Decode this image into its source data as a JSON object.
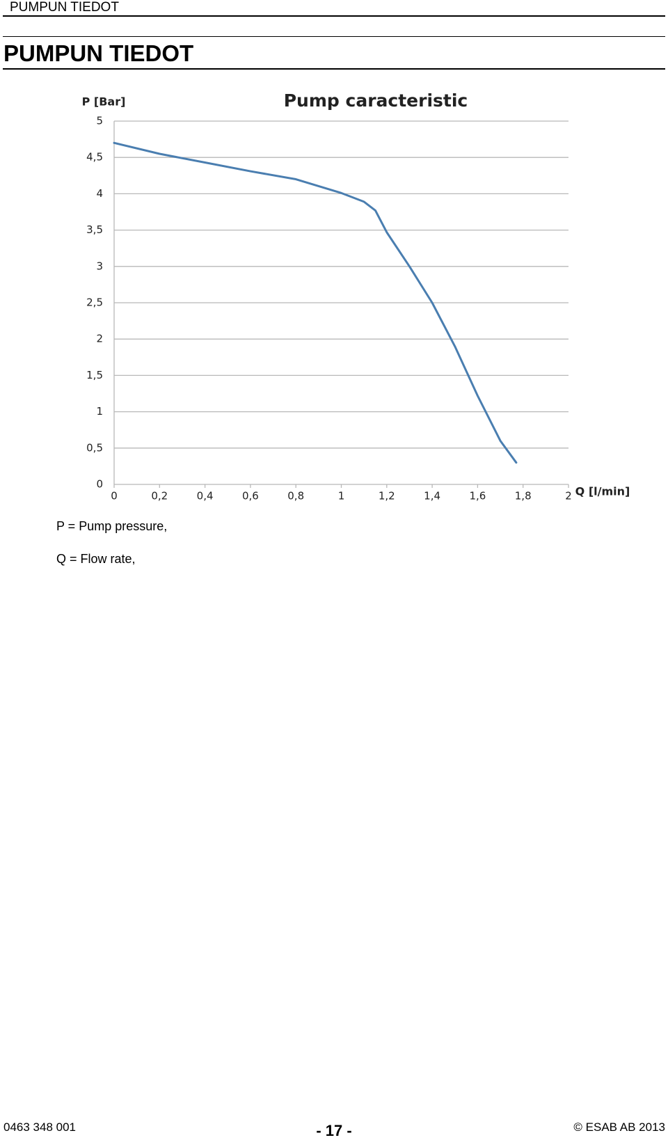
{
  "header": {
    "running_title": "PUMPUN TIEDOT",
    "title": "PUMPUN TIEDOT"
  },
  "chart_data": {
    "type": "line",
    "title": "Pump caracteristic",
    "y_label": "P [Bar]",
    "x_label": "Q [l/min]",
    "x": [
      0,
      0.2,
      0.4,
      0.6,
      0.8,
      1,
      1.1,
      1.15,
      1.2,
      1.3,
      1.4,
      1.5,
      1.6,
      1.7,
      1.77
    ],
    "values": [
      4.7,
      4.55,
      4.43,
      4.31,
      4.2,
      4.01,
      3.89,
      3.77,
      3.47,
      3.0,
      2.5,
      1.9,
      1.22,
      0.6,
      0.3
    ],
    "color": "#4a7eb0",
    "xlim": [
      0,
      2
    ],
    "ylim": [
      0,
      5
    ],
    "xticks": [
      0,
      {
        "value": 0.2,
        "label": "0,2"
      },
      {
        "value": 0.4,
        "label": "0,4"
      },
      {
        "value": 0.6,
        "label": "0,6"
      },
      {
        "value": 0.8,
        "label": "0,8"
      },
      1,
      {
        "value": 1.2,
        "label": "1,2"
      },
      {
        "value": 1.4,
        "label": "1,4"
      },
      {
        "value": 1.6,
        "label": "1,6"
      },
      {
        "value": 1.8,
        "label": "1,8"
      },
      2
    ],
    "yticks": [
      0,
      {
        "value": 0.5,
        "label": "0,5"
      },
      1,
      {
        "value": 1.5,
        "label": "1,5"
      },
      2,
      {
        "value": 2.5,
        "label": "2,5"
      },
      3,
      {
        "value": 3.5,
        "label": "3,5"
      },
      4,
      {
        "value": 4.5,
        "label": "4,5"
      },
      5
    ],
    "grid": true
  },
  "notes": [
    "P = Pump pressure,",
    "Q = Flow rate,"
  ],
  "footer": {
    "doc_number": "0463 348 001",
    "page": "- 17 -",
    "copyright": "© ESAB AB 2013"
  }
}
